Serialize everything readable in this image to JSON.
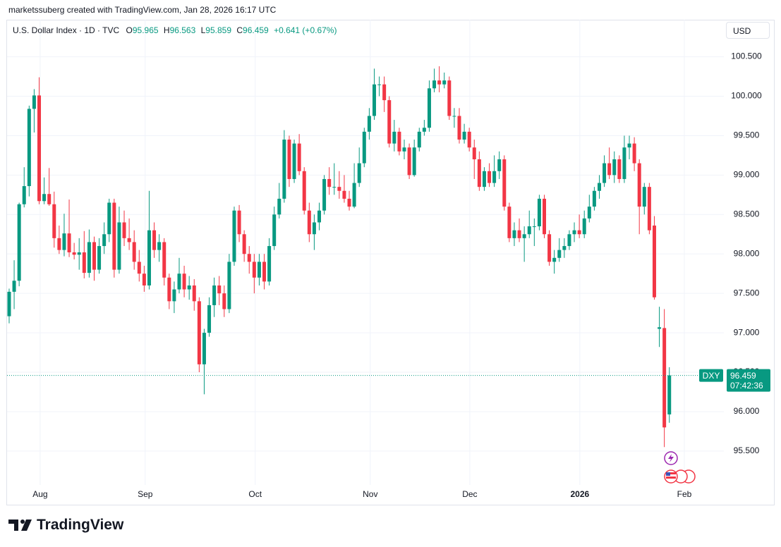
{
  "header": {
    "credit": "marketssuberg created with TradingView.com, Jan 28, 2026 16:17 UTC",
    "symbol": "U.S. Dollar Index · 1D · TVC",
    "o_label": "O",
    "h_label": "H",
    "l_label": "L",
    "c_label": "C",
    "change": "+0.641 (+0.67%)",
    "currency": "USD",
    "ticker": "DXY",
    "countdown": "07:42:36"
  },
  "footer": {
    "brand": "TradingView"
  },
  "chart_data": {
    "type": "candlestick",
    "up_color": "#089981",
    "down_color": "#f23645",
    "grid": true,
    "ylim": [
      95.07,
      100.97
    ],
    "yticks": [
      {
        "value": 95.5,
        "label": "95.500"
      },
      {
        "value": 96,
        "label": "96.000"
      },
      {
        "value": 96.5,
        "label": "96.500"
      },
      {
        "value": 97,
        "label": "97.000"
      },
      {
        "value": 97.5,
        "label": "97.500"
      },
      {
        "value": 98,
        "label": "98.000"
      },
      {
        "value": 98.5,
        "label": "98.500"
      },
      {
        "value": 99,
        "label": "99.000"
      },
      {
        "value": 99.5,
        "label": "99.500"
      },
      {
        "value": 100,
        "label": "100.000"
      },
      {
        "value": 100.5,
        "label": "100.500"
      }
    ],
    "xlim": [
      -0.42,
      142.9
    ],
    "xticks": [
      {
        "value": 6.2,
        "label": "Aug"
      },
      {
        "value": 27.2,
        "label": "Sep"
      },
      {
        "value": 49.2,
        "label": "Oct"
      },
      {
        "value": 72.2,
        "label": "Nov"
      },
      {
        "value": 92.1,
        "label": "Dec"
      },
      {
        "value": 114.1,
        "label": "2026"
      },
      {
        "value": 135,
        "label": "Feb"
      }
    ],
    "ohlc": [
      [
        97.21,
        97.56,
        97.12,
        97.52
      ],
      [
        97.52,
        97.92,
        97.3,
        97.66
      ],
      [
        97.66,
        98.65,
        97.59,
        98.63
      ],
      [
        98.63,
        99.1,
        98.59,
        98.86
      ],
      [
        98.86,
        99.88,
        98.73,
        99.84
      ],
      [
        99.84,
        100.09,
        99.54,
        100.01
      ],
      [
        100.01,
        100.24,
        98.63,
        98.67
      ],
      [
        98.67,
        98.97,
        98.63,
        98.76
      ],
      [
        98.76,
        99.09,
        98.61,
        98.63
      ],
      [
        98.63,
        98.79,
        98.08,
        98.2
      ],
      [
        98.2,
        98.36,
        98.0,
        98.05
      ],
      [
        98.05,
        98.51,
        97.97,
        98.26
      ],
      [
        98.26,
        98.69,
        97.96,
        98.02
      ],
      [
        98.02,
        98.14,
        97.93,
        97.99
      ],
      [
        97.99,
        98.2,
        97.8,
        98.02
      ],
      [
        98.02,
        98.29,
        97.69,
        97.76
      ],
      [
        97.76,
        98.31,
        97.7,
        98.15
      ],
      [
        98.15,
        98.22,
        97.66,
        97.8
      ],
      [
        97.8,
        98.2,
        97.75,
        98.1
      ],
      [
        98.1,
        98.4,
        98.0,
        98.25
      ],
      [
        98.25,
        98.7,
        98.15,
        98.65
      ],
      [
        98.65,
        98.7,
        97.7,
        97.8
      ],
      [
        97.8,
        98.6,
        97.75,
        98.4
      ],
      [
        98.4,
        98.55,
        98.1,
        98.2
      ],
      [
        98.2,
        98.45,
        98.05,
        98.15
      ],
      [
        98.15,
        98.3,
        97.8,
        97.9
      ],
      [
        97.9,
        98.05,
        97.65,
        97.75
      ],
      [
        97.75,
        97.85,
        97.52,
        97.6
      ],
      [
        97.6,
        98.8,
        97.55,
        98.3
      ],
      [
        98.3,
        98.4,
        97.95,
        98.05
      ],
      [
        98.05,
        98.25,
        97.9,
        98.15
      ],
      [
        98.15,
        98.2,
        97.6,
        97.7
      ],
      [
        97.7,
        97.75,
        97.3,
        97.4
      ],
      [
        97.4,
        97.65,
        97.25,
        97.55
      ],
      [
        97.55,
        97.95,
        97.5,
        97.75
      ],
      [
        97.75,
        97.85,
        97.45,
        97.55
      ],
      [
        97.55,
        97.72,
        97.42,
        97.6
      ],
      [
        97.6,
        97.68,
        97.28,
        97.4
      ],
      [
        97.4,
        97.45,
        96.5,
        96.6
      ],
      [
        96.6,
        97.05,
        96.22,
        97.0
      ],
      [
        97.0,
        97.45,
        96.95,
        97.35
      ],
      [
        97.35,
        97.7,
        97.2,
        97.6
      ],
      [
        97.6,
        97.72,
        97.35,
        97.5
      ],
      [
        97.5,
        97.6,
        97.2,
        97.3
      ],
      [
        97.3,
        98.0,
        97.25,
        97.9
      ],
      [
        97.9,
        98.6,
        97.85,
        98.55
      ],
      [
        98.55,
        98.62,
        98.15,
        98.25
      ],
      [
        98.25,
        98.3,
        97.9,
        98.0
      ],
      [
        98.0,
        98.1,
        97.75,
        97.9
      ],
      [
        97.9,
        98.0,
        97.5,
        97.7
      ],
      [
        97.7,
        98.0,
        97.6,
        97.9
      ],
      [
        97.9,
        98.0,
        97.55,
        97.65
      ],
      [
        97.65,
        98.2,
        97.6,
        98.1
      ],
      [
        98.1,
        98.6,
        98.05,
        98.5
      ],
      [
        98.5,
        98.9,
        98.45,
        98.7
      ],
      [
        98.7,
        99.57,
        98.65,
        99.45
      ],
      [
        99.45,
        99.5,
        98.85,
        98.95
      ],
      [
        98.95,
        99.45,
        98.9,
        99.4
      ],
      [
        99.4,
        99.52,
        99.0,
        99.05
      ],
      [
        99.05,
        99.1,
        98.5,
        98.55
      ],
      [
        98.55,
        98.65,
        98.15,
        98.25
      ],
      [
        98.25,
        98.5,
        98.05,
        98.4
      ],
      [
        98.4,
        98.65,
        98.3,
        98.55
      ],
      [
        98.55,
        99.0,
        98.5,
        98.95
      ],
      [
        98.95,
        99.1,
        98.75,
        98.85
      ],
      [
        98.85,
        99.15,
        98.75,
        98.85
      ],
      [
        98.85,
        99.05,
        98.7,
        98.8
      ],
      [
        98.8,
        99.0,
        98.65,
        98.7
      ],
      [
        98.7,
        98.8,
        98.55,
        98.6
      ],
      [
        98.6,
        99.15,
        98.58,
        98.9
      ],
      [
        98.9,
        99.35,
        98.85,
        99.15
      ],
      [
        99.15,
        99.6,
        99.1,
        99.55
      ],
      [
        99.55,
        99.85,
        99.45,
        99.75
      ],
      [
        99.75,
        100.35,
        99.7,
        100.15
      ],
      [
        100.15,
        100.25,
        100.0,
        100.15
      ],
      [
        100.15,
        100.25,
        99.8,
        99.95
      ],
      [
        99.95,
        100.0,
        99.35,
        99.4
      ],
      [
        99.4,
        99.7,
        99.3,
        99.55
      ],
      [
        99.55,
        99.6,
        99.25,
        99.3
      ],
      [
        99.3,
        99.45,
        99.2,
        99.35
      ],
      [
        99.35,
        99.4,
        98.95,
        99.0
      ],
      [
        99.0,
        99.45,
        98.98,
        99.35
      ],
      [
        99.35,
        99.6,
        99.3,
        99.55
      ],
      [
        99.55,
        99.7,
        99.5,
        99.6
      ],
      [
        99.6,
        100.2,
        99.55,
        100.1
      ],
      [
        100.1,
        100.35,
        100.05,
        100.2
      ],
      [
        100.2,
        100.38,
        100.05,
        100.15
      ],
      [
        100.15,
        100.3,
        100.1,
        100.2
      ],
      [
        100.2,
        100.25,
        99.7,
        99.75
      ],
      [
        99.75,
        99.85,
        99.6,
        99.75
      ],
      [
        99.75,
        99.85,
        99.4,
        99.45
      ],
      [
        99.45,
        99.65,
        99.4,
        99.55
      ],
      [
        99.55,
        99.6,
        99.3,
        99.35
      ],
      [
        99.35,
        99.45,
        98.95,
        99.2
      ],
      [
        99.2,
        99.3,
        98.8,
        98.85
      ],
      [
        98.85,
        99.1,
        98.8,
        99.05
      ],
      [
        99.05,
        99.15,
        98.85,
        98.9
      ],
      [
        98.9,
        99.25,
        98.85,
        99.05
      ],
      [
        99.05,
        99.3,
        98.95,
        99.2
      ],
      [
        99.2,
        99.25,
        98.55,
        98.6
      ],
      [
        98.6,
        98.65,
        98.15,
        98.2
      ],
      [
        98.2,
        98.4,
        98.1,
        98.3
      ],
      [
        98.3,
        98.45,
        98.15,
        98.2
      ],
      [
        98.2,
        98.35,
        97.9,
        98.25
      ],
      [
        98.25,
        98.55,
        98.2,
        98.35
      ],
      [
        98.35,
        98.45,
        98.1,
        98.35
      ],
      [
        98.35,
        98.75,
        98.3,
        98.7
      ],
      [
        98.7,
        98.75,
        98.2,
        98.25
      ],
      [
        98.25,
        98.3,
        97.85,
        97.9
      ],
      [
        97.9,
        98.05,
        97.75,
        97.95
      ],
      [
        97.95,
        98.2,
        97.9,
        98.05
      ],
      [
        98.05,
        98.2,
        97.95,
        98.1
      ],
      [
        98.1,
        98.3,
        98.05,
        98.25
      ],
      [
        98.25,
        98.4,
        98.15,
        98.3
      ],
      [
        98.3,
        98.5,
        98.2,
        98.25
      ],
      [
        98.25,
        98.55,
        98.2,
        98.45
      ],
      [
        98.45,
        98.75,
        98.4,
        98.6
      ],
      [
        98.6,
        98.85,
        98.55,
        98.8
      ],
      [
        98.8,
        99.0,
        98.7,
        98.9
      ],
      [
        98.9,
        99.25,
        98.85,
        99.15
      ],
      [
        99.15,
        99.35,
        98.95,
        99.0
      ],
      [
        99.0,
        99.3,
        98.9,
        99.2
      ],
      [
        99.2,
        99.25,
        98.9,
        98.95
      ],
      [
        98.95,
        99.5,
        98.9,
        99.35
      ],
      [
        99.35,
        99.5,
        99.2,
        99.4
      ],
      [
        99.4,
        99.48,
        99.05,
        99.15
      ],
      [
        99.15,
        99.2,
        98.25,
        98.6
      ],
      [
        98.6,
        98.9,
        98.5,
        98.85
      ],
      [
        98.85,
        98.9,
        98.25,
        98.3
      ],
      [
        98.36,
        98.48,
        97.42,
        97.45
      ],
      [
        97.05,
        97.33,
        96.82,
        97.07
      ],
      [
        97.06,
        97.3,
        95.55,
        95.8
      ],
      [
        95.965,
        96.563,
        95.859,
        96.459
      ]
    ]
  }
}
